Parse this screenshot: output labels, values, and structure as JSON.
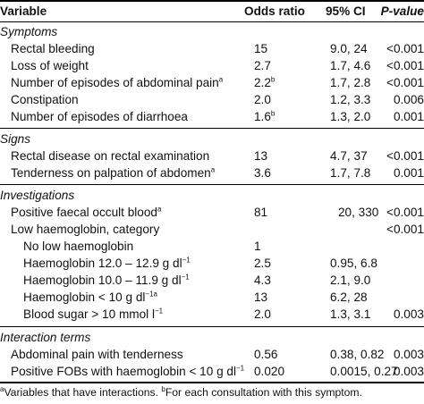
{
  "table": {
    "headers": {
      "variable": "Variable",
      "odds_ratio": "Odds ratio",
      "ci": "95% CI",
      "pvalue": "P-value"
    },
    "sections": [
      {
        "title": "Symptoms",
        "rows": [
          {
            "label": "Rectal bleeding",
            "or": "15",
            "ci": "9.0, 24",
            "p": "<0.001"
          },
          {
            "label": "Loss of weight",
            "or": "2.7",
            "ci": "1.7, 4.6",
            "p": "<0.001"
          },
          {
            "label": "Number of episodes of abdominal pain",
            "label_sup": "a",
            "or": "2.2",
            "or_sup": "b",
            "ci": "1.7, 2.8",
            "p": "<0.001"
          },
          {
            "label": "Constipation",
            "or": "2.0",
            "ci": "1.2, 3.3",
            "p": "0.006"
          },
          {
            "label": "Number of episodes of diarrhoea",
            "or": "1.6",
            "or_sup": "b",
            "ci": "1.3, 2.0",
            "p": "0.001"
          }
        ]
      },
      {
        "title": "Signs",
        "rows": [
          {
            "label": "Rectal disease on rectal examination",
            "or": "13",
            "ci": "4.7, 37",
            "p": "<0.001"
          },
          {
            "label": "Tenderness on palpation of abdomen",
            "label_sup": "a",
            "or": "3.6",
            "ci": "1.7, 7.8",
            "p": "0.001"
          }
        ]
      },
      {
        "title": "Investigations",
        "rows": [
          {
            "label": "Positive faecal occult blood",
            "label_sup": "a",
            "or": "81",
            "ci": "20, 330",
            "p": "<0.001"
          },
          {
            "label": "Low haemoglobin, category",
            "or": "",
            "ci": "",
            "p": "<0.001"
          },
          {
            "label": "No low haemoglobin",
            "or": "1",
            "ci": "",
            "p": ""
          },
          {
            "label": "Haemoglobin 12.0 – 12.9 g dl",
            "label_sup": "−1",
            "or": "2.5",
            "ci": "0.95, 6.8",
            "p": ""
          },
          {
            "label": "Haemoglobin 10.0 – 11.9 g dl",
            "label_sup": "−1",
            "or": "4.3",
            "ci": "2.1, 9.0",
            "p": ""
          },
          {
            "label": "Haemoglobin  < 10 g dl",
            "label_sup": "−1a",
            "or": "13",
            "ci": "6.2, 28",
            "p": ""
          },
          {
            "label": "Blood sugar  > 10 mmol l",
            "label_sup": "−1",
            "or": "2.0",
            "ci": "1.3, 3.1",
            "p": "0.003"
          }
        ]
      },
      {
        "title": "Interaction terms",
        "rows": [
          {
            "label": "Abdominal pain with tenderness",
            "or": "0.56",
            "ci": "0.38, 0.82",
            "p": "0.003"
          },
          {
            "label": "Positive FOBs with haemoglobin  < 10 g dl",
            "label_sup": "−1",
            "or": "0.020",
            "ci": "0.0015, 0.27",
            "p": "0.003"
          }
        ]
      }
    ],
    "footnote": {
      "a_mark": "a",
      "a_text": "Variables that have interactions.",
      "b_mark": "b",
      "b_text": "For each consultation with this symptom."
    }
  }
}
